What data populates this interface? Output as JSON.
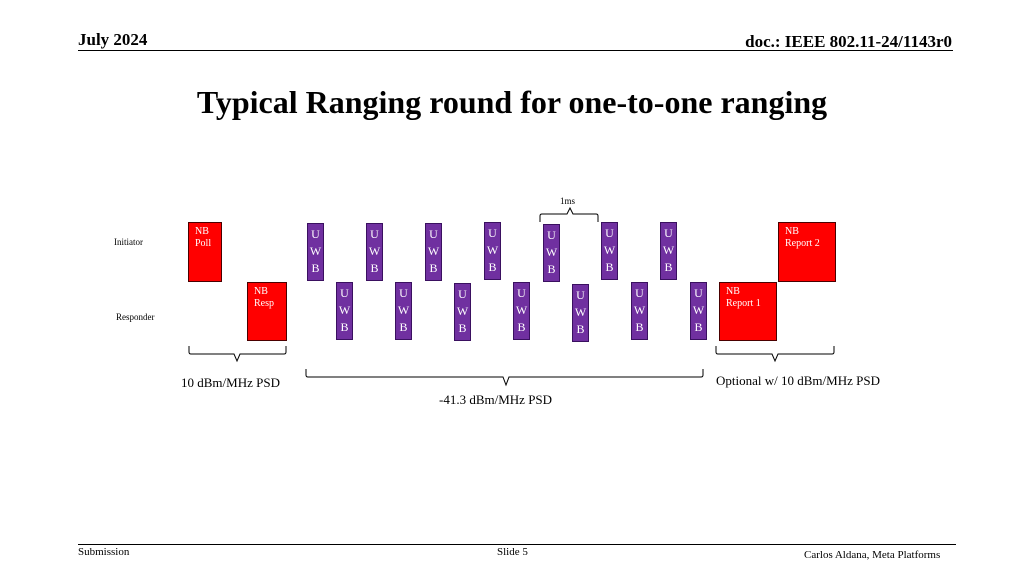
{
  "header": {
    "date": "July 2024",
    "doc": "doc.: IEEE 802.11-24/1143r0"
  },
  "title": "Typical Ranging round for one-to-one ranging",
  "lanes": {
    "initiator": "Initiator",
    "responder": "Responder"
  },
  "timing_label": "1ms",
  "nb_boxes": {
    "poll": [
      "NB",
      "Poll"
    ],
    "resp": [
      "NB",
      "Resp"
    ],
    "report1": [
      "NB",
      "Report 1"
    ],
    "report2": [
      "NB",
      "Report 2"
    ]
  },
  "uwb_letters": [
    "U",
    "W",
    "B"
  ],
  "annotations": {
    "left_psd": "10 dBm/MHz PSD",
    "middle_psd": "-41.3 dBm/MHz PSD",
    "right_psd": "Optional w/ 10 dBm/MHz PSD"
  },
  "colors": {
    "nb": "#ff0000",
    "uwb": "#7030a0"
  },
  "footer": {
    "submission": "Submission",
    "slide": "Slide 5",
    "author": "Carlos Aldana, Meta Platforms"
  }
}
